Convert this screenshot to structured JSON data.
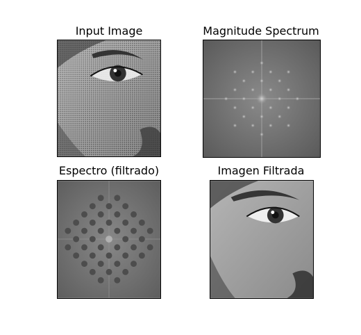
{
  "figure": {
    "panels": [
      {
        "title": "Input Image",
        "content": "halftone-face-photo"
      },
      {
        "title": "Magnitude Spectrum",
        "content": "fft-magnitude-spectrum"
      },
      {
        "title": "Espectro (filtrado)",
        "content": "filtered-spectrum-notches"
      },
      {
        "title": "Imagen Filtrada",
        "content": "filtered-face-photo"
      }
    ]
  },
  "colors": {
    "background": "#ffffff",
    "border": "#000000",
    "spectrum_gray": "#6b6b6b",
    "notch_gray": "#4d4d4d"
  }
}
